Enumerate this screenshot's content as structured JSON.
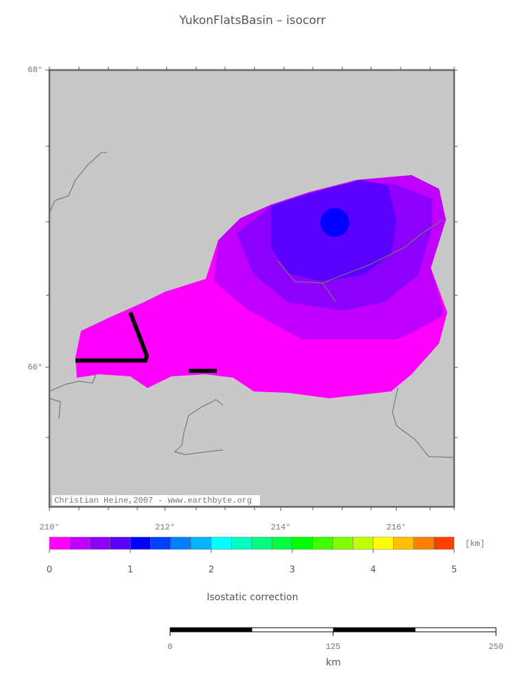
{
  "title": "YukonFlatsBasin – isocorr",
  "map": {
    "lonlim": [
      210,
      217
    ],
    "latlim": [
      65.06,
      68
    ],
    "lon_ticks": [
      {
        "value": 210,
        "label": "210°"
      },
      {
        "value": 212,
        "label": "212°"
      },
      {
        "value": 214,
        "label": "214°"
      },
      {
        "value": 216,
        "label": "216°"
      }
    ],
    "lat_ticks": [
      {
        "value": 68,
        "label": "68°"
      },
      {
        "value": 66,
        "label": "66°"
      }
    ],
    "credit": "Christian Heine,2007 - www.earthbyte.org"
  },
  "colorbar": {
    "lim": [
      0,
      5
    ],
    "ticks": [
      0,
      1,
      2,
      3,
      4,
      5
    ],
    "unit": "[km]",
    "label": "Isostatic correction",
    "colors": [
      "#ff00ff",
      "#c000ff",
      "#8c00ff",
      "#5a00ff",
      "#0000ff",
      "#0040ff",
      "#0080ff",
      "#00b4ff",
      "#00ffff",
      "#00ffc0",
      "#00ff80",
      "#00ff40",
      "#00ff00",
      "#40ff00",
      "#80ff00",
      "#c0ff00",
      "#ffff00",
      "#ffc000",
      "#ff8000",
      "#ff4000"
    ]
  },
  "scalebar": {
    "ticks": [
      0,
      125,
      250
    ],
    "unit": "km"
  }
}
